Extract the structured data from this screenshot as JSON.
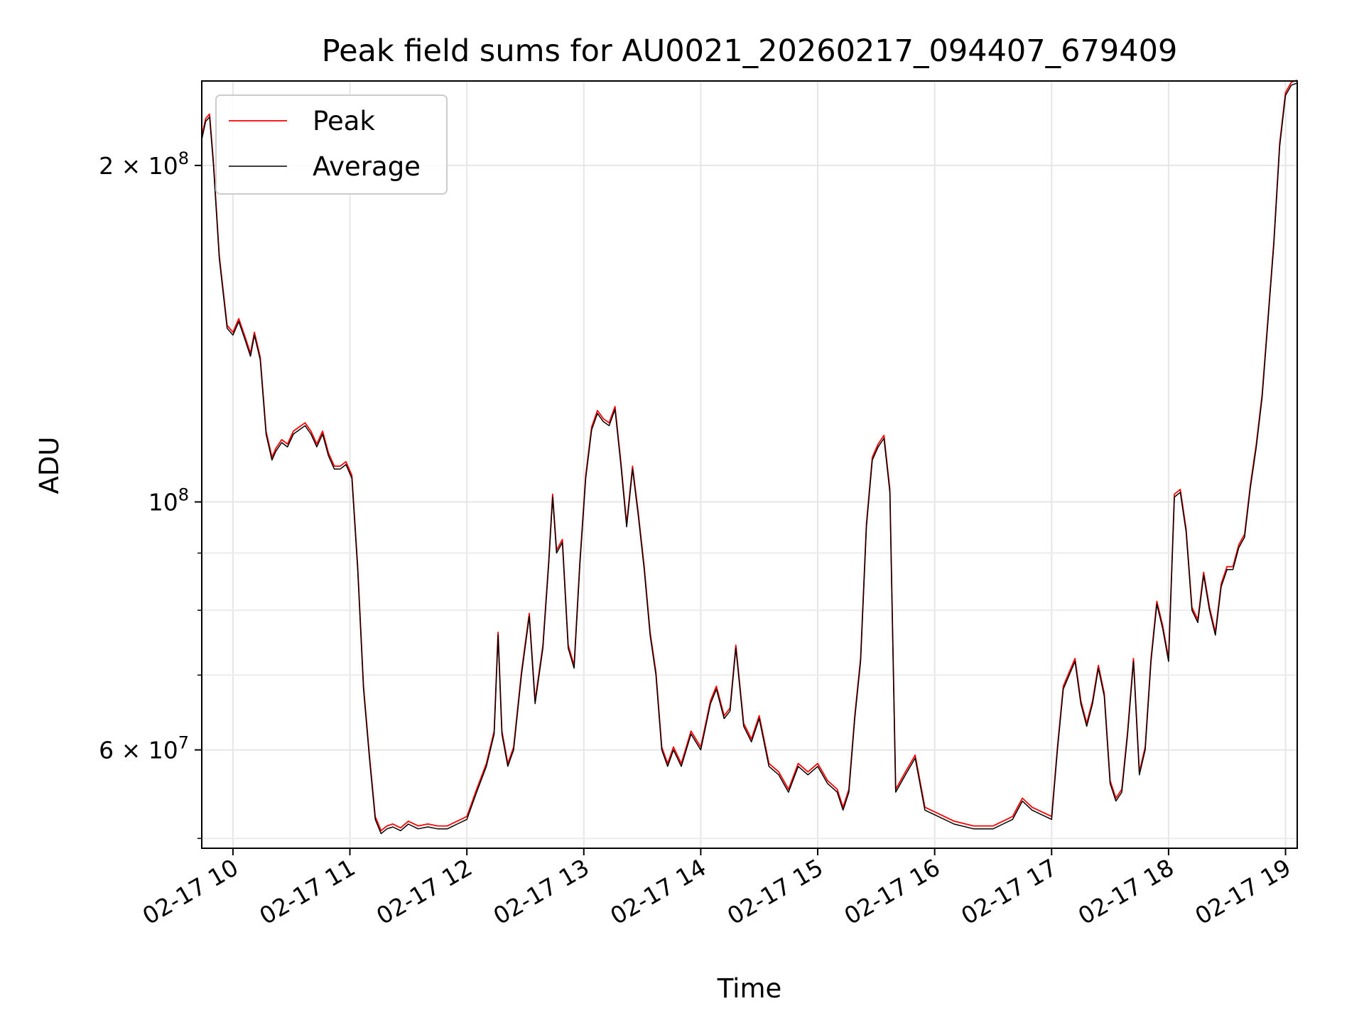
{
  "chart_data": {
    "type": "line",
    "title": "Peak field sums for AU0021_20260217_094407_679409",
    "xlabel": "Time",
    "ylabel": "ADU",
    "y_scale": "log",
    "ylim": [
      49000000,
      238000000
    ],
    "xlim": [
      "02-17 09:44",
      "02-17 19:06"
    ],
    "grid": true,
    "legend_position": "top-left",
    "x_ticks": [
      "02-17 10",
      "02-17 11",
      "02-17 12",
      "02-17 13",
      "02-17 14",
      "02-17 15",
      "02-17 16",
      "02-17 17",
      "02-17 18",
      "02-17 19"
    ],
    "y_ticks": [
      {
        "value": 60000000,
        "mantissa": "6",
        "exponent": "7"
      },
      {
        "value": 100000000,
        "mantissa": "",
        "exponent": "8"
      },
      {
        "value": 200000000,
        "mantissa": "2",
        "exponent": "8"
      }
    ],
    "series": [
      {
        "name": "Peak",
        "color": "#ff0000"
      },
      {
        "name": "Average",
        "color": "#000000"
      }
    ],
    "x": [
      "09:44",
      "09:46",
      "09:48",
      "09:50",
      "09:53",
      "09:57",
      "10:00",
      "10:03",
      "10:06",
      "10:09",
      "10:11",
      "10:14",
      "10:17",
      "10:20",
      "10:22",
      "10:25",
      "10:28",
      "10:31",
      "10:34",
      "10:37",
      "10:40",
      "10:43",
      "10:46",
      "10:49",
      "10:52",
      "10:55",
      "10:58",
      "11:01",
      "11:04",
      "11:07",
      "11:10",
      "11:13",
      "11:16",
      "11:19",
      "11:22",
      "11:26",
      "11:30",
      "11:35",
      "11:40",
      "11:45",
      "11:50",
      "11:55",
      "12:00",
      "12:05",
      "12:10",
      "12:14",
      "12:16",
      "12:18",
      "12:21",
      "12:24",
      "12:28",
      "12:32",
      "12:35",
      "12:39",
      "12:42",
      "12:44",
      "12:46",
      "12:49",
      "12:52",
      "12:55",
      "12:58",
      "13:01",
      "13:04",
      "13:07",
      "13:10",
      "13:13",
      "13:16",
      "13:19",
      "13:22",
      "13:25",
      "13:28",
      "13:31",
      "13:34",
      "13:37",
      "13:40",
      "13:43",
      "13:46",
      "13:50",
      "13:55",
      "14:00",
      "14:05",
      "14:08",
      "14:12",
      "14:15",
      "14:18",
      "14:22",
      "14:26",
      "14:30",
      "14:35",
      "14:40",
      "14:45",
      "14:50",
      "14:55",
      "15:00",
      "15:05",
      "15:10",
      "15:13",
      "15:16",
      "15:19",
      "15:22",
      "15:25",
      "15:28",
      "15:31",
      "15:34",
      "15:37",
      "15:40",
      "15:45",
      "15:50",
      "15:55",
      "16:00",
      "16:10",
      "16:20",
      "16:30",
      "16:35",
      "16:40",
      "16:45",
      "16:50",
      "16:55",
      "17:00",
      "17:03",
      "17:06",
      "17:09",
      "17:12",
      "17:15",
      "17:18",
      "17:21",
      "17:24",
      "17:27",
      "17:30",
      "17:33",
      "17:36",
      "17:39",
      "17:42",
      "17:45",
      "17:48",
      "17:51",
      "17:54",
      "17:57",
      "18:00",
      "18:03",
      "18:06",
      "18:09",
      "18:12",
      "18:15",
      "18:18",
      "18:21",
      "18:24",
      "18:27",
      "18:30",
      "18:33",
      "18:36",
      "18:39",
      "18:42",
      "18:45",
      "18:48",
      "18:51",
      "18:54",
      "18:57",
      "19:00",
      "19:03",
      "19:06"
    ],
    "values": [
      211000000,
      219000000,
      221000000,
      200000000,
      165000000,
      143000000,
      141000000,
      145000000,
      140000000,
      135000000,
      141000000,
      134000000,
      115000000,
      109000000,
      111000000,
      113000000,
      112000000,
      115000000,
      116000000,
      117000000,
      115000000,
      112000000,
      115000000,
      110000000,
      107000000,
      107000000,
      108000000,
      105000000,
      87000000,
      68000000,
      59000000,
      52000000,
      50500000,
      51000000,
      51200000,
      50800000,
      51500000,
      51000000,
      51200000,
      51000000,
      51000000,
      51500000,
      52000000,
      55000000,
      58000000,
      62000000,
      76000000,
      62000000,
      58000000,
      60000000,
      70000000,
      79000000,
      66000000,
      74000000,
      88000000,
      101000000,
      90000000,
      92000000,
      74000000,
      71000000,
      88000000,
      105000000,
      116000000,
      120000000,
      118000000,
      117000000,
      121000000,
      108000000,
      95000000,
      107000000,
      97000000,
      87000000,
      76000000,
      70000000,
      60000000,
      58000000,
      60000000,
      58000000,
      62000000,
      60000000,
      66000000,
      68000000,
      64000000,
      65000000,
      74000000,
      63000000,
      61000000,
      64000000,
      58000000,
      57000000,
      55000000,
      58000000,
      57000000,
      58000000,
      56000000,
      55000000,
      53000000,
      55000000,
      64000000,
      72000000,
      95000000,
      109000000,
      112000000,
      114000000,
      102000000,
      55000000,
      57000000,
      59000000,
      53000000,
      52500000,
      51500000,
      51000000,
      51000000,
      51500000,
      52000000,
      54000000,
      53000000,
      52500000,
      52000000,
      60000000,
      68000000,
      70000000,
      72000000,
      66000000,
      63000000,
      66000000,
      71000000,
      67000000,
      56000000,
      54000000,
      55000000,
      62000000,
      72000000,
      57000000,
      60000000,
      72000000,
      81000000,
      77000000,
      72000000,
      101000000,
      102000000,
      94000000,
      80000000,
      78000000,
      86000000,
      80000000,
      76000000,
      84000000,
      87000000,
      87000000,
      91000000,
      93000000,
      103000000,
      112000000,
      124000000,
      145000000,
      170000000,
      208000000,
      231000000,
      236000000,
      237000000
    ]
  },
  "legend": {
    "peak_label": "Peak",
    "average_label": "Average"
  }
}
